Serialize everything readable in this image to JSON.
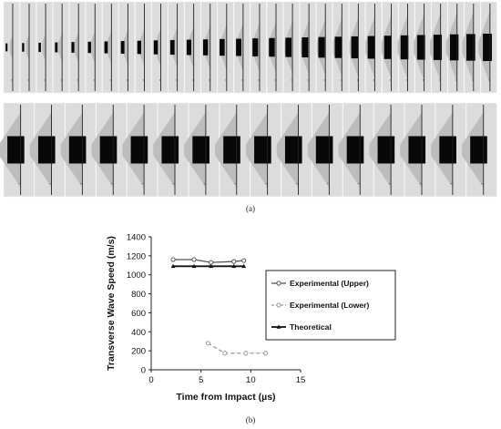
{
  "captions": {
    "a": "(a)",
    "b": "(b)"
  },
  "photo_strip": {
    "rows": [
      {
        "frames": 30,
        "projectile": "growing"
      },
      {
        "frames": 16,
        "projectile": "full"
      }
    ]
  },
  "chart_data": {
    "type": "line",
    "xlabel": "Time from Impact (µs)",
    "ylabel": "Transverse Wave Speed (m/s)",
    "xlim": [
      0,
      15
    ],
    "ylim": [
      0,
      1400
    ],
    "xticks": [
      0,
      5,
      10,
      15
    ],
    "yticks": [
      0,
      200,
      400,
      600,
      800,
      1000,
      1200,
      1400
    ],
    "grid": false,
    "legend_position": "right",
    "series": [
      {
        "name": "Experimental (Upper)",
        "color": "#555555",
        "dash": "solid",
        "marker": "circle",
        "x": [
          2.2,
          4.3,
          6.0,
          8.3,
          9.3
        ],
        "y": [
          1160,
          1160,
          1130,
          1140,
          1150
        ]
      },
      {
        "name": "Experimental (Lower)",
        "color": "#999999",
        "dash": "dashed",
        "marker": "circle",
        "x": [
          5.7,
          7.4,
          9.5,
          11.5
        ],
        "y": [
          280,
          175,
          175,
          175
        ]
      },
      {
        "name": "Theoretical",
        "color": "#111111",
        "dash": "solid",
        "marker": "triangle",
        "x": [
          2.2,
          4.3,
          6.0,
          8.3,
          9.3
        ],
        "y": [
          1090,
          1090,
          1090,
          1090,
          1090
        ]
      }
    ]
  }
}
